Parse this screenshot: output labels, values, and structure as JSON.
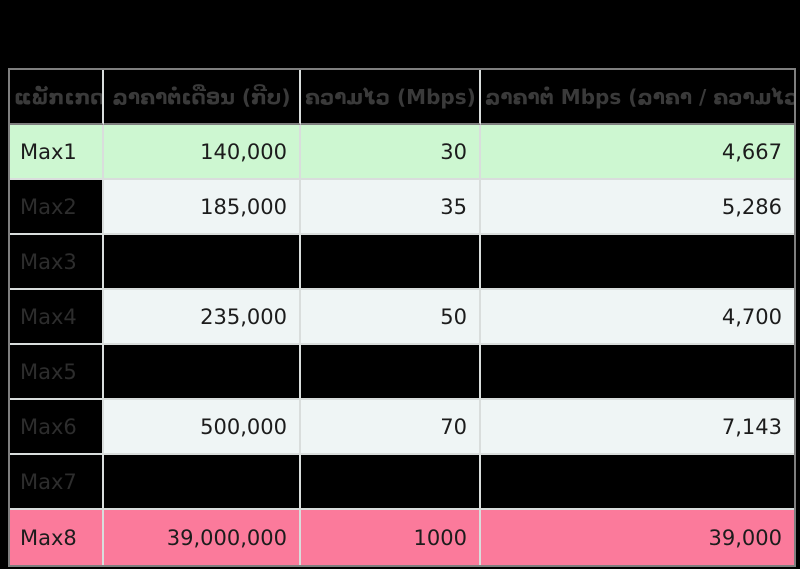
{
  "page": {
    "background": "#000000"
  },
  "colors": {
    "bg": "#000000",
    "grid-dark": "#7f7f7f",
    "grid-light": "#d9dddc",
    "header-text": "#3a3a3a",
    "dim-label": "#2d2d2d",
    "data-text": "#1c1c1c",
    "row-green": "#cdf7d1",
    "row-light": "#eff5f5",
    "row-pink": "#fb7a9b"
  },
  "chart_data": {
    "type": "table",
    "title": "",
    "columns": [
      "ແພັກເກດ",
      "ລາຄາຕໍ່ເດືອນ (ກີບ)",
      "ຄວາມໄວ (Mbps)",
      "ລາຄາຕໍ່ Mbps (ລາຄາ / ຄວາມໄວ)"
    ],
    "rows": [
      {
        "package": "Max1",
        "price_per_month_kip": "140,000",
        "speed_mbps": "30",
        "price_per_mbps": "4,667",
        "variant": "green"
      },
      {
        "package": "Max2",
        "price_per_month_kip": "185,000",
        "speed_mbps": "35",
        "price_per_mbps": "5,286",
        "variant": "normal"
      },
      {
        "package": "Max3",
        "price_per_month_kip": "",
        "speed_mbps": "",
        "price_per_mbps": "",
        "variant": "redacted"
      },
      {
        "package": "Max4",
        "price_per_month_kip": "235,000",
        "speed_mbps": "50",
        "price_per_mbps": "4,700",
        "variant": "normal"
      },
      {
        "package": "Max5",
        "price_per_month_kip": "",
        "speed_mbps": "",
        "price_per_mbps": "",
        "variant": "redacted"
      },
      {
        "package": "Max6",
        "price_per_month_kip": "500,000",
        "speed_mbps": "70",
        "price_per_mbps": "7,143",
        "variant": "normal"
      },
      {
        "package": "Max7",
        "price_per_month_kip": "",
        "speed_mbps": "",
        "price_per_mbps": "",
        "variant": "redacted"
      },
      {
        "package": "Max8",
        "price_per_month_kip": "39,000,000",
        "speed_mbps": "1000",
        "price_per_mbps": "39,000",
        "variant": "pink"
      }
    ],
    "layout_hints": {
      "header_background": "black",
      "redacted_rows_rendered_as": "solid black cells",
      "highlighted_rows": {
        "Max1": "green",
        "Max8": "pink"
      },
      "number_alignment": "right"
    }
  }
}
